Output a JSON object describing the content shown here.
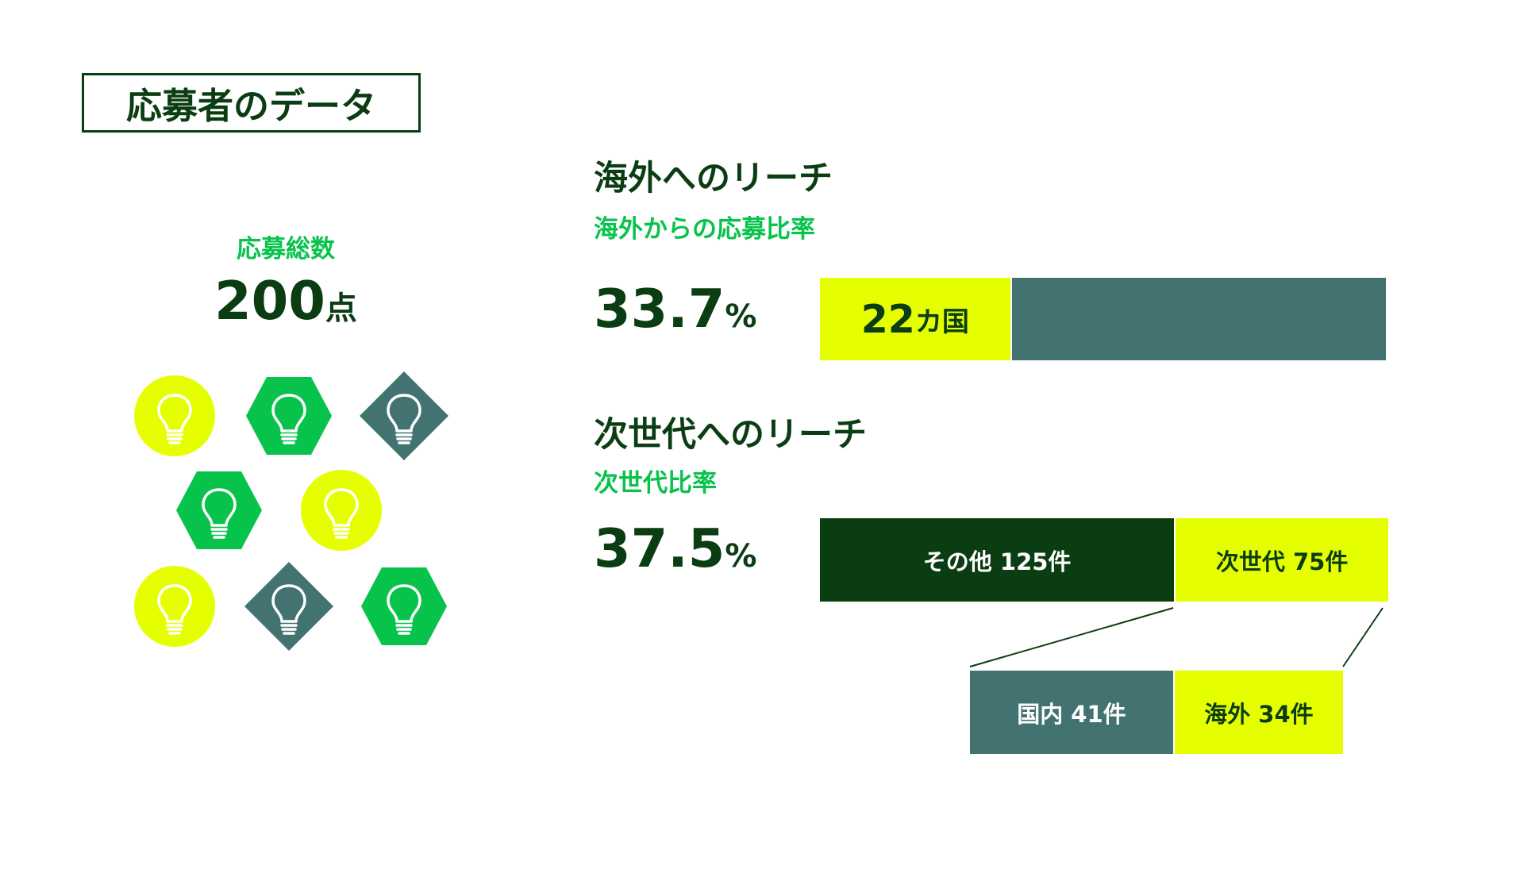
{
  "header": {
    "title": "応募者のデータ"
  },
  "total": {
    "label": "応募総数",
    "value": "200",
    "unit": "点"
  },
  "icons": [
    {
      "shape": "circle",
      "color": "#e6ff00",
      "icon": "lightbulb-icon"
    },
    {
      "shape": "hexagon",
      "color": "#07c34c",
      "icon": "lightbulb-icon"
    },
    {
      "shape": "diamond",
      "color": "#427370",
      "icon": "lightbulb-icon"
    },
    {
      "shape": "hexagon",
      "color": "#07c34c",
      "icon": "lightbulb-icon"
    },
    {
      "shape": "circle",
      "color": "#e6ff00",
      "icon": "lightbulb-icon"
    },
    {
      "shape": "circle",
      "color": "#e6ff00",
      "icon": "lightbulb-icon"
    },
    {
      "shape": "diamond",
      "color": "#427370",
      "icon": "lightbulb-icon"
    },
    {
      "shape": "hexagon",
      "color": "#07c34c",
      "icon": "lightbulb-icon"
    }
  ],
  "overseas": {
    "title": "海外へのリーチ",
    "subtitle": "海外からの応募比率",
    "pct_value": "33.7",
    "pct_sign": "%",
    "countries_value": "22",
    "countries_unit": "カ国"
  },
  "nextgen": {
    "title": "次世代へのリーチ",
    "subtitle": "次世代比率",
    "pct_value": "37.5",
    "pct_sign": "%",
    "other_label": "その他 125件",
    "nextgen_label": "次世代 75件",
    "domestic_label": "国内 41件",
    "overseas_label": "海外 34件"
  },
  "colors": {
    "dark_green": "#0b3d12",
    "green": "#07c34c",
    "yellow": "#e6ff00",
    "teal": "#427370"
  },
  "chart_data": [
    {
      "type": "bar",
      "title": "海外からの応募比率",
      "orientation": "horizontal-stacked",
      "series": [
        {
          "name": "",
          "values": [
            33.7
          ]
        },
        {
          "name": "",
          "values": [
            66.3
          ]
        }
      ],
      "annotation": "22カ国",
      "unit": "%"
    },
    {
      "type": "bar",
      "title": "次世代比率",
      "orientation": "horizontal-stacked",
      "categories": [
        "その他",
        "次世代"
      ],
      "values": [
        125,
        75
      ],
      "breakdown": {
        "of": "次世代",
        "categories": [
          "国内",
          "海外"
        ],
        "values": [
          41,
          34
        ]
      },
      "unit": "件"
    }
  ]
}
